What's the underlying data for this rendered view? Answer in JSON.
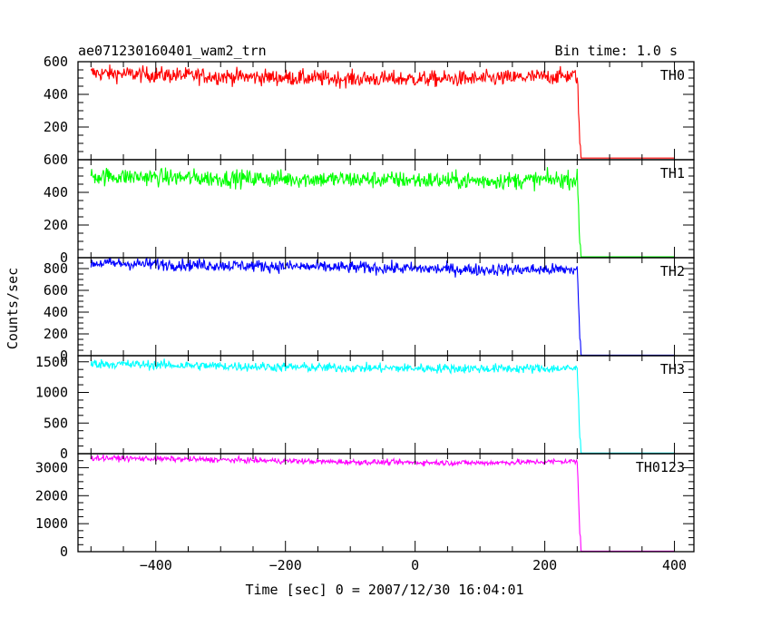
{
  "header": {
    "title": "ae071230160401_wam2_trn",
    "bin_time": "Bin time: 1.0 s"
  },
  "chart_data": {
    "type": "line",
    "title": "ae071230160401_wam2_trn",
    "xlabel": "Time [sec] 0 = 2007/12/30 16:04:01",
    "ylabel": "Counts/sec",
    "xlim": [
      -520,
      430
    ],
    "x_ticks": [
      -400,
      -200,
      0,
      200,
      400
    ],
    "grid": false,
    "step_time": 255,
    "series": [
      {
        "name": "TH0",
        "color": "#ff0000",
        "ylim": [
          0,
          600
        ],
        "y_ticks": [
          200,
          400,
          600
        ],
        "x": [
          -500,
          -300,
          -100,
          100,
          250,
          255,
          400
        ],
        "values": [
          530,
          510,
          495,
          495,
          515,
          10,
          10
        ],
        "noise": 35
      },
      {
        "name": "TH1",
        "color": "#00ff00",
        "ylim": [
          0,
          600
        ],
        "y_ticks": [
          0,
          200,
          400,
          600
        ],
        "x": [
          -500,
          -300,
          -100,
          100,
          250,
          255,
          400
        ],
        "values": [
          500,
          485,
          480,
          470,
          480,
          5,
          5
        ],
        "noise": 38
      },
      {
        "name": "TH2",
        "color": "#0000ff",
        "ylim": [
          0,
          900
        ],
        "y_ticks": [
          0,
          200,
          400,
          600,
          800
        ],
        "x": [
          -500,
          -300,
          -100,
          100,
          250,
          255,
          400
        ],
        "values": [
          850,
          830,
          810,
          790,
          790,
          5,
          5
        ],
        "noise": 40
      },
      {
        "name": "TH3",
        "color": "#00ffff",
        "ylim": [
          0,
          1600
        ],
        "y_ticks": [
          0,
          500,
          1000,
          1500
        ],
        "x": [
          -500,
          -300,
          -100,
          100,
          250,
          255,
          400
        ],
        "values": [
          1470,
          1430,
          1400,
          1390,
          1390,
          10,
          10
        ],
        "noise": 55
      },
      {
        "name": "TH0123",
        "color": "#ff00ff",
        "ylim": [
          0,
          3500
        ],
        "y_ticks": [
          0,
          1000,
          2000,
          3000
        ],
        "x": [
          -500,
          -300,
          -100,
          100,
          250,
          255,
          400
        ],
        "values": [
          3350,
          3280,
          3200,
          3170,
          3230,
          20,
          20
        ],
        "noise": 70
      }
    ]
  }
}
